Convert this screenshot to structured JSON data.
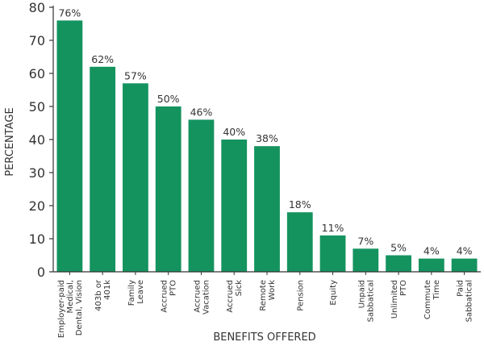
{
  "chart_data": {
    "type": "bar",
    "title": "",
    "xlabel": "BENEFITS OFFERED",
    "ylabel": "PERCENTAGE",
    "ylim": [
      0,
      80
    ],
    "yticks": [
      0,
      10,
      20,
      30,
      40,
      50,
      60,
      70,
      80
    ],
    "grid": false,
    "bar_color": "#14935f",
    "categories": [
      [
        "Employer-paid",
        "Medical,",
        "Dental, Vision"
      ],
      [
        "403b or",
        "401k"
      ],
      [
        "Family",
        "Leave"
      ],
      [
        "Accrued",
        "PTO"
      ],
      [
        "Accrued",
        "Vacation"
      ],
      [
        "Accrued",
        "Sick"
      ],
      [
        "Remote",
        "Work"
      ],
      [
        "Pension"
      ],
      [
        "Equity"
      ],
      [
        "Unpaid",
        "Sabbatical"
      ],
      [
        "Unlimited",
        "PTO"
      ],
      [
        "Commute",
        "Time"
      ],
      [
        "Paid",
        "Sabbatical"
      ]
    ],
    "values": [
      76,
      62,
      57,
      50,
      46,
      40,
      38,
      18,
      11,
      7,
      5,
      4,
      4
    ],
    "value_labels": [
      "76%",
      "62%",
      "57%",
      "50%",
      "46%",
      "40%",
      "38%",
      "18%",
      "11%",
      "7%",
      "5%",
      "4%",
      "4%"
    ]
  }
}
